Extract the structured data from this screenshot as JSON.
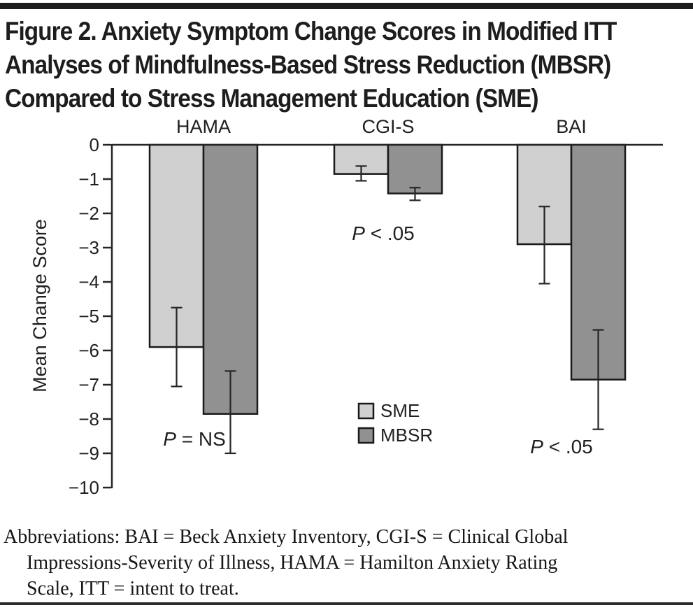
{
  "figure": {
    "title_lines": [
      "Figure 2. Anxiety Symptom Change Scores in Modified ITT",
      "Analyses of Mindfulness-Based Stress Reduction (MBSR)",
      "Compared to Stress Management Education (SME)"
    ],
    "abbreviations_lines": [
      "Abbreviations: BAI = Beck Anxiety Inventory, CGI-S = Clinical Global",
      "Impressions-Severity of Illness, HAMA = Hamilton Anxiety Rating",
      "Scale, ITT = intent to treat."
    ]
  },
  "chart_data": {
    "type": "bar",
    "categories": [
      "HAMA",
      "CGI-S",
      "BAI"
    ],
    "series": [
      {
        "name": "SME",
        "color": "#d0d0d0",
        "values": [
          -5.9,
          -0.85,
          -2.9
        ],
        "error_low": [
          -4.75,
          -0.62,
          -1.8
        ],
        "error_high": [
          -7.05,
          -1.05,
          -4.05
        ]
      },
      {
        "name": "MBSR",
        "color": "#919191",
        "values": [
          -7.85,
          -1.42,
          -6.85
        ],
        "error_low": [
          -6.6,
          -1.25,
          -5.4
        ],
        "error_high": [
          -9.0,
          -1.62,
          -8.3
        ]
      }
    ],
    "ylabel": "Mean Change Score",
    "ylim": [
      0,
      -10
    ],
    "y_ticks": [
      0,
      -1,
      -2,
      -3,
      -4,
      -5,
      -6,
      -7,
      -8,
      -9,
      -10
    ],
    "y_tick_labels": [
      "0",
      "−1",
      "−2",
      "−3",
      "−4",
      "−5",
      "−6",
      "−7",
      "−8",
      "−9",
      "−10"
    ],
    "annotations": [
      {
        "category": "HAMA",
        "text": "P = NS"
      },
      {
        "category": "CGI-S",
        "text": "P < .05"
      },
      {
        "category": "BAI",
        "text": "P < .05"
      }
    ],
    "legend": {
      "entries": [
        "SME",
        "MBSR"
      ],
      "position": "lower-center"
    },
    "grid": false,
    "bar_border_color": "#1a1a1a",
    "axis_color": "#262626",
    "text_color": "#1f1f1f"
  }
}
